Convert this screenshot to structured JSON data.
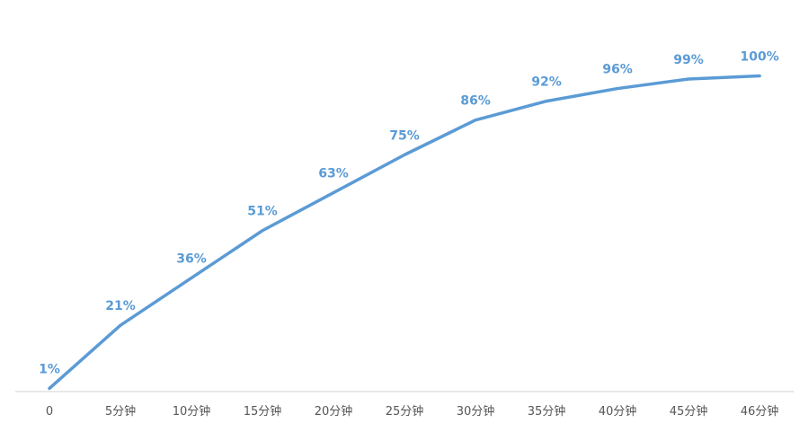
{
  "chart_data": {
    "type": "line",
    "title": "",
    "xlabel": "",
    "ylabel": "",
    "categories": [
      "0",
      "5分钟",
      "10分钟",
      "15分钟",
      "20分钟",
      "25分钟",
      "30分钟",
      "35分钟",
      "40分钟",
      "45分钟",
      "46分钟"
    ],
    "x": [
      0,
      5,
      10,
      15,
      20,
      25,
      30,
      35,
      40,
      45,
      46
    ],
    "data_labels": [
      "1%",
      "21%",
      "36%",
      "51%",
      "63%",
      "75%",
      "86%",
      "92%",
      "96%",
      "99%",
      "100%"
    ],
    "series": [
      {
        "values": [
          1,
          21,
          36,
          51,
          63,
          75,
          86,
          92,
          96,
          99,
          100
        ]
      }
    ],
    "ylim": [
      0,
      100
    ],
    "grid": false,
    "legend": "none",
    "line_color": "#5b9bd5",
    "label_color": "#5b9bd5",
    "drop_line_color": "#bdd7ee",
    "baseline_color": "#d9d9d9",
    "tick_color": "#555555"
  }
}
